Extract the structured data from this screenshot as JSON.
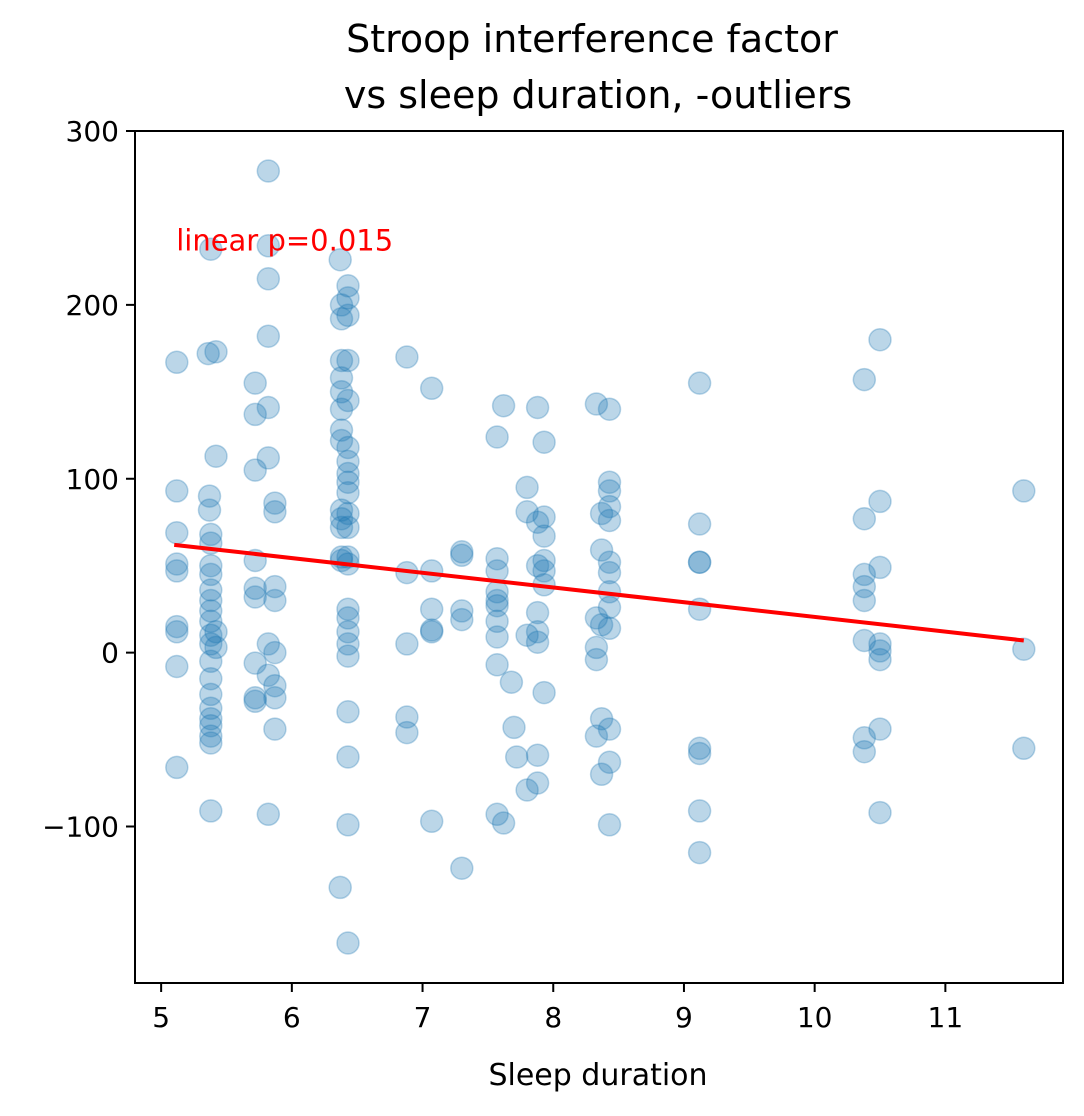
{
  "chart_data": {
    "type": "scatter",
    "title_lines": [
      "Stroop interference factor",
      "vs sleep duration, -outliers"
    ],
    "xlabel": "Sleep duration",
    "ylabel": "",
    "xlim": [
      4.8,
      11.9
    ],
    "ylim": [
      -190,
      300
    ],
    "xticks": [
      5,
      6,
      7,
      8,
      9,
      10,
      11
    ],
    "xtick_labels": [
      "5",
      "6",
      "7",
      "8",
      "9",
      "10",
      "11"
    ],
    "yticks": [
      -100,
      0,
      100,
      200,
      300
    ],
    "ytick_labels": [
      "−100",
      "0",
      "100",
      "200",
      "300"
    ],
    "grid": false,
    "point_color": "#1f77b4",
    "line_color": "#ff0000",
    "annotation": {
      "text": "linear p=0.015",
      "x": 5.1,
      "y": 237
    },
    "fit_line": {
      "x": [
        5.1,
        11.6
      ],
      "y": [
        62,
        7
      ]
    },
    "points": [
      [
        5.12,
        167
      ],
      [
        5.12,
        93
      ],
      [
        5.12,
        69
      ],
      [
        5.12,
        51
      ],
      [
        5.12,
        47
      ],
      [
        5.12,
        15
      ],
      [
        5.12,
        12
      ],
      [
        5.12,
        -8
      ],
      [
        5.12,
        -66
      ],
      [
        5.38,
        232
      ],
      [
        5.36,
        172
      ],
      [
        5.37,
        90
      ],
      [
        5.37,
        82
      ],
      [
        5.38,
        68
      ],
      [
        5.38,
        63
      ],
      [
        5.38,
        50
      ],
      [
        5.38,
        45
      ],
      [
        5.38,
        36
      ],
      [
        5.38,
        30
      ],
      [
        5.38,
        24
      ],
      [
        5.38,
        18
      ],
      [
        5.38,
        10
      ],
      [
        5.38,
        5
      ],
      [
        5.38,
        -5
      ],
      [
        5.38,
        -15
      ],
      [
        5.38,
        -24
      ],
      [
        5.38,
        -32
      ],
      [
        5.38,
        -38
      ],
      [
        5.38,
        -42
      ],
      [
        5.38,
        -48
      ],
      [
        5.38,
        -52
      ],
      [
        5.38,
        -91
      ],
      [
        5.42,
        173
      ],
      [
        5.42,
        113
      ],
      [
        5.42,
        12
      ],
      [
        5.42,
        3
      ],
      [
        5.82,
        277
      ],
      [
        5.82,
        234
      ],
      [
        5.82,
        215
      ],
      [
        5.82,
        182
      ],
      [
        5.82,
        141
      ],
      [
        5.82,
        112
      ],
      [
        5.82,
        5
      ],
      [
        5.82,
        -13
      ],
      [
        5.82,
        -93
      ],
      [
        5.72,
        155
      ],
      [
        5.72,
        137
      ],
      [
        5.72,
        105
      ],
      [
        5.72,
        53
      ],
      [
        5.72,
        37
      ],
      [
        5.72,
        32
      ],
      [
        5.72,
        -6
      ],
      [
        5.72,
        -26
      ],
      [
        5.72,
        -28
      ],
      [
        5.87,
        86
      ],
      [
        5.87,
        81
      ],
      [
        5.87,
        38
      ],
      [
        5.87,
        30
      ],
      [
        5.87,
        0
      ],
      [
        5.87,
        -19
      ],
      [
        5.87,
        -26
      ],
      [
        5.87,
        -44
      ],
      [
        6.37,
        226
      ],
      [
        6.38,
        200
      ],
      [
        6.38,
        192
      ],
      [
        6.38,
        168
      ],
      [
        6.38,
        158
      ],
      [
        6.38,
        150
      ],
      [
        6.38,
        140
      ],
      [
        6.38,
        128
      ],
      [
        6.38,
        122
      ],
      [
        6.38,
        82
      ],
      [
        6.38,
        77
      ],
      [
        6.38,
        72
      ],
      [
        6.38,
        55
      ],
      [
        6.38,
        53
      ],
      [
        6.37,
        -135
      ],
      [
        6.43,
        211
      ],
      [
        6.43,
        204
      ],
      [
        6.43,
        194
      ],
      [
        6.43,
        168
      ],
      [
        6.43,
        145
      ],
      [
        6.43,
        118
      ],
      [
        6.43,
        110
      ],
      [
        6.43,
        103
      ],
      [
        6.43,
        98
      ],
      [
        6.43,
        92
      ],
      [
        6.43,
        80
      ],
      [
        6.43,
        72
      ],
      [
        6.43,
        55
      ],
      [
        6.43,
        51
      ],
      [
        6.43,
        25
      ],
      [
        6.43,
        20
      ],
      [
        6.43,
        12
      ],
      [
        6.43,
        5
      ],
      [
        6.43,
        -2
      ],
      [
        6.43,
        -34
      ],
      [
        6.43,
        -60
      ],
      [
        6.43,
        -99
      ],
      [
        6.43,
        -167
      ],
      [
        6.88,
        170
      ],
      [
        6.88,
        46
      ],
      [
        6.88,
        5
      ],
      [
        6.88,
        -37
      ],
      [
        6.88,
        -46
      ],
      [
        7.07,
        152
      ],
      [
        7.07,
        47
      ],
      [
        7.07,
        25
      ],
      [
        7.07,
        13
      ],
      [
        7.07,
        12
      ],
      [
        7.07,
        -97
      ],
      [
        7.3,
        58
      ],
      [
        7.3,
        56
      ],
      [
        7.3,
        24
      ],
      [
        7.3,
        19
      ],
      [
        7.3,
        -124
      ],
      [
        7.57,
        124
      ],
      [
        7.57,
        54
      ],
      [
        7.57,
        47
      ],
      [
        7.57,
        35
      ],
      [
        7.57,
        30
      ],
      [
        7.57,
        27
      ],
      [
        7.57,
        18
      ],
      [
        7.57,
        9
      ],
      [
        7.57,
        -7
      ],
      [
        7.57,
        -93
      ],
      [
        7.62,
        142
      ],
      [
        7.62,
        -98
      ],
      [
        7.68,
        -17
      ],
      [
        7.7,
        -43
      ],
      [
        7.72,
        -60
      ],
      [
        7.8,
        95
      ],
      [
        7.8,
        81
      ],
      [
        7.8,
        10
      ],
      [
        7.8,
        -79
      ],
      [
        7.88,
        141
      ],
      [
        7.88,
        75
      ],
      [
        7.88,
        50
      ],
      [
        7.88,
        23
      ],
      [
        7.88,
        12
      ],
      [
        7.88,
        6
      ],
      [
        7.88,
        -59
      ],
      [
        7.88,
        -75
      ],
      [
        7.93,
        121
      ],
      [
        7.93,
        78
      ],
      [
        7.93,
        67
      ],
      [
        7.93,
        53
      ],
      [
        7.93,
        47
      ],
      [
        7.93,
        39
      ],
      [
        7.93,
        -23
      ],
      [
        8.33,
        143
      ],
      [
        8.33,
        20
      ],
      [
        8.33,
        3
      ],
      [
        8.33,
        -4
      ],
      [
        8.33,
        -48
      ],
      [
        8.37,
        80
      ],
      [
        8.37,
        59
      ],
      [
        8.37,
        16
      ],
      [
        8.37,
        -38
      ],
      [
        8.37,
        -70
      ],
      [
        8.43,
        140
      ],
      [
        8.43,
        98
      ],
      [
        8.43,
        93
      ],
      [
        8.43,
        84
      ],
      [
        8.43,
        76
      ],
      [
        8.43,
        52
      ],
      [
        8.43,
        46
      ],
      [
        8.43,
        35
      ],
      [
        8.43,
        26
      ],
      [
        8.43,
        14
      ],
      [
        8.43,
        -44
      ],
      [
        8.43,
        -63
      ],
      [
        8.43,
        -99
      ],
      [
        9.12,
        155
      ],
      [
        9.12,
        74
      ],
      [
        9.12,
        52
      ],
      [
        9.12,
        52
      ],
      [
        9.12,
        25
      ],
      [
        9.12,
        -55
      ],
      [
        9.12,
        -58
      ],
      [
        9.12,
        -91
      ],
      [
        9.12,
        -115
      ],
      [
        10.38,
        157
      ],
      [
        10.38,
        77
      ],
      [
        10.38,
        45
      ],
      [
        10.38,
        38
      ],
      [
        10.38,
        30
      ],
      [
        10.38,
        7
      ],
      [
        10.38,
        -49
      ],
      [
        10.38,
        -57
      ],
      [
        10.5,
        180
      ],
      [
        10.5,
        87
      ],
      [
        10.5,
        49
      ],
      [
        10.5,
        5
      ],
      [
        10.5,
        1
      ],
      [
        10.5,
        -4
      ],
      [
        10.5,
        -44
      ],
      [
        10.5,
        -92
      ],
      [
        11.6,
        93
      ],
      [
        11.6,
        2
      ],
      [
        11.6,
        -55
      ]
    ]
  }
}
